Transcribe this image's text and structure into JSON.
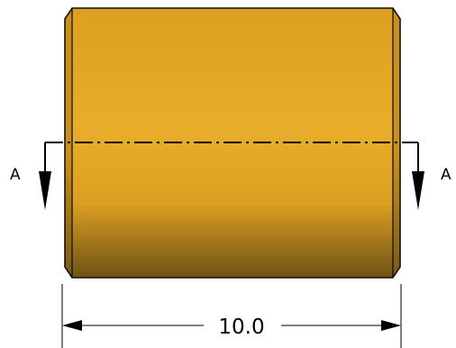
{
  "drawing": {
    "part": {
      "colors": {
        "body_light": "#e8ad2a",
        "body_mid": "#dda022",
        "body_dark": "#6e5214",
        "chamfer_light": "#cc8e1c",
        "chamfer_dark": "#7a5a14",
        "outline": "#111111"
      }
    },
    "section": {
      "left_label": "A",
      "right_label": "A"
    },
    "dimension": {
      "length_label": "10.0"
    }
  }
}
